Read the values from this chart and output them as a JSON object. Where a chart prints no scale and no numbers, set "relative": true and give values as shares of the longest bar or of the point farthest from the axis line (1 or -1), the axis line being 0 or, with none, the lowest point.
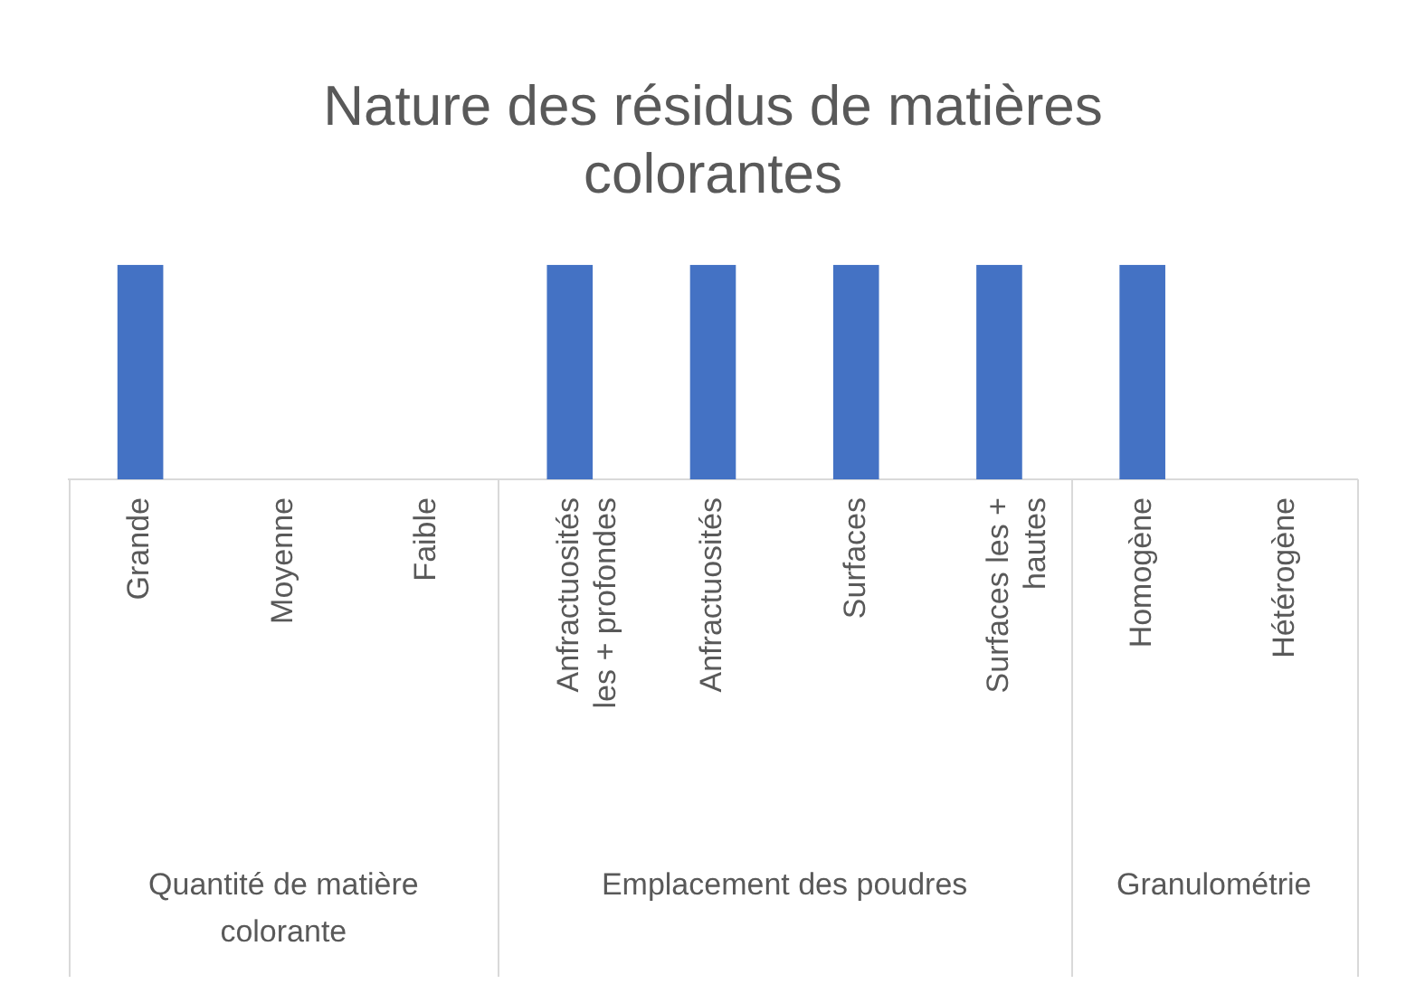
{
  "chart_data": {
    "type": "bar",
    "title": "Nature des résidus de matières colorantes",
    "categories": [
      "Grande",
      "Moyenne",
      "Faible",
      "Anfractuosités les + profondes",
      "Anfractuosités",
      "Surfaces",
      "Surfaces les + hautes",
      "Homogène",
      "Hétérogène"
    ],
    "values": [
      1,
      0,
      0,
      1,
      1,
      1,
      1,
      1,
      0
    ],
    "color": "#4472c4",
    "relative": true,
    "grid": false,
    "legend": false,
    "annotations": [
      "Quantité de matière colorante",
      "Emplacement des poudres",
      "Granulométrie"
    ]
  }
}
